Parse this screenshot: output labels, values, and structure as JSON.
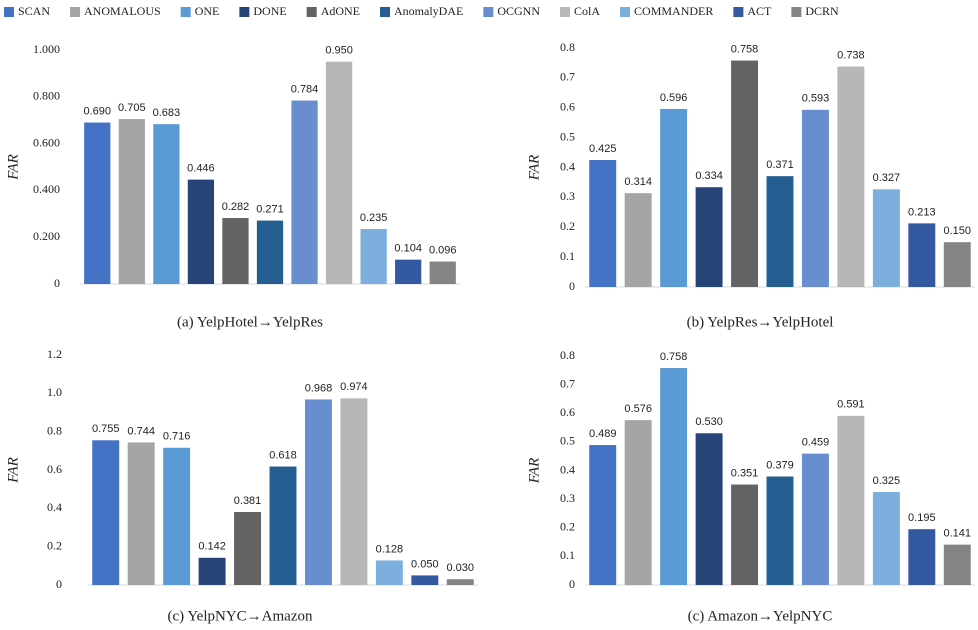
{
  "chart_data": [
    {
      "type": "bar",
      "caption": "(a) YelpHotel→YelpRes",
      "ylabel": "FAR",
      "ylim": [
        0,
        1
      ],
      "yticks": [
        0,
        {
          "value": 0.2,
          "label": "0.200"
        },
        {
          "value": 0.4,
          "label": "0.400"
        },
        {
          "value": 0.6,
          "label": "0.600"
        },
        {
          "value": 0.8,
          "label": "0.800"
        },
        {
          "value": 1,
          "label": "1.000"
        }
      ],
      "grid": false,
      "series": [
        {
          "name": "SCAN",
          "color": "#4472c4",
          "values": [
            0.69
          ],
          "value_labels": [
            "0.690"
          ]
        },
        {
          "name": "ANOMALOUS",
          "color": "#a5a5a5",
          "values": [
            0.705
          ]
        },
        {
          "name": "ONE",
          "color": "#5b9bd5",
          "values": [
            0.683
          ]
        },
        {
          "name": "DONE",
          "color": "#264478",
          "values": [
            0.446
          ]
        },
        {
          "name": "AdONE",
          "color": "#636363",
          "values": [
            0.282
          ]
        },
        {
          "name": "AnomalyDAE",
          "color": "#255e91",
          "values": [
            0.271
          ]
        },
        {
          "name": "OCGNN",
          "color": "#698ed0",
          "values": [
            0.784
          ]
        },
        {
          "name": "ColA",
          "color": "#b7b7b7",
          "values": [
            0.95
          ],
          "value_labels": [
            "0.950"
          ]
        },
        {
          "name": "COMMANDER",
          "color": "#7cafdd",
          "values": [
            0.235
          ]
        },
        {
          "name": "ACT",
          "color": "#335aa1",
          "values": [
            0.104
          ]
        },
        {
          "name": "DCRN",
          "color": "#848484",
          "values": [
            0.096
          ]
        }
      ]
    },
    {
      "type": "bar",
      "caption": "(b) YelpRes→YelpHotel",
      "ylabel": "FAR",
      "ylim": [
        0,
        0.8
      ],
      "yticks": [
        0,
        0.1,
        0.2,
        0.3,
        0.4,
        0.5,
        0.6,
        0.7,
        0.8
      ],
      "grid": false,
      "series": [
        {
          "name": "SCAN",
          "color": "#4472c4",
          "values": [
            0.425
          ]
        },
        {
          "name": "ANOMALOUS",
          "color": "#a5a5a5",
          "values": [
            0.314
          ]
        },
        {
          "name": "ONE",
          "color": "#5b9bd5",
          "values": [
            0.596
          ]
        },
        {
          "name": "DONE",
          "color": "#264478",
          "values": [
            0.334
          ]
        },
        {
          "name": "AdONE",
          "color": "#636363",
          "values": [
            0.758
          ]
        },
        {
          "name": "AnomalyDAE",
          "color": "#255e91",
          "values": [
            0.371
          ]
        },
        {
          "name": "OCGNN",
          "color": "#698ed0",
          "values": [
            0.593
          ]
        },
        {
          "name": "ColA",
          "color": "#b7b7b7",
          "values": [
            0.738
          ]
        },
        {
          "name": "COMMANDER",
          "color": "#7cafdd",
          "values": [
            0.327
          ]
        },
        {
          "name": "ACT",
          "color": "#335aa1",
          "values": [
            0.213
          ]
        },
        {
          "name": "DCRN",
          "color": "#848484",
          "values": [
            0.15
          ],
          "value_labels": [
            "0.150"
          ]
        }
      ]
    },
    {
      "type": "bar",
      "caption": "(c) YelpNYC→Amazon",
      "ylabel": "FAR",
      "ylim": [
        0,
        1.2
      ],
      "yticks": [
        0,
        0.2,
        0.4,
        0.6,
        0.8,
        {
          "value": 1,
          "label": "1.0"
        },
        1.2
      ],
      "grid": false,
      "series": [
        {
          "name": "SCAN",
          "color": "#4472c4",
          "values": [
            0.755
          ]
        },
        {
          "name": "ANOMALOUS",
          "color": "#a5a5a5",
          "values": [
            0.744
          ]
        },
        {
          "name": "ONE",
          "color": "#5b9bd5",
          "values": [
            0.716
          ]
        },
        {
          "name": "DONE",
          "color": "#264478",
          "values": [
            0.142
          ]
        },
        {
          "name": "AdONE",
          "color": "#636363",
          "values": [
            0.381
          ]
        },
        {
          "name": "AnomalyDAE",
          "color": "#255e91",
          "values": [
            0.618
          ]
        },
        {
          "name": "OCGNN",
          "color": "#698ed0",
          "values": [
            0.968
          ]
        },
        {
          "name": "ColA",
          "color": "#b7b7b7",
          "values": [
            0.974
          ]
        },
        {
          "name": "COMMANDER",
          "color": "#7cafdd",
          "values": [
            0.128
          ]
        },
        {
          "name": "ACT",
          "color": "#335aa1",
          "values": [
            0.05
          ],
          "value_labels": [
            "0.050"
          ]
        },
        {
          "name": "DCRN",
          "color": "#848484",
          "values": [
            0.03
          ],
          "value_labels": [
            "0.030"
          ]
        }
      ]
    },
    {
      "type": "bar",
      "caption": "(c) Amazon→YelpNYC",
      "ylabel": "FAR",
      "ylim": [
        0,
        0.8
      ],
      "yticks": [
        0,
        0.1,
        0.2,
        0.3,
        0.4,
        0.5,
        0.6,
        0.7,
        0.8
      ],
      "grid": false,
      "series": [
        {
          "name": "SCAN",
          "color": "#4472c4",
          "values": [
            0.489
          ]
        },
        {
          "name": "ANOMALOUS",
          "color": "#a5a5a5",
          "values": [
            0.576
          ]
        },
        {
          "name": "ONE",
          "color": "#5b9bd5",
          "values": [
            0.758
          ]
        },
        {
          "name": "DONE",
          "color": "#264478",
          "values": [
            0.53
          ],
          "value_labels": [
            "0.530"
          ]
        },
        {
          "name": "AdONE",
          "color": "#636363",
          "values": [
            0.351
          ]
        },
        {
          "name": "AnomalyDAE",
          "color": "#255e91",
          "values": [
            0.379
          ]
        },
        {
          "name": "OCGNN",
          "color": "#698ed0",
          "values": [
            0.459
          ]
        },
        {
          "name": "ColA",
          "color": "#b7b7b7",
          "values": [
            0.591
          ]
        },
        {
          "name": "COMMANDER",
          "color": "#7cafdd",
          "values": [
            0.325
          ]
        },
        {
          "name": "ACT",
          "color": "#335aa1",
          "values": [
            0.195
          ]
        },
        {
          "name": "DCRN",
          "color": "#848484",
          "values": [
            0.141
          ]
        }
      ]
    }
  ]
}
